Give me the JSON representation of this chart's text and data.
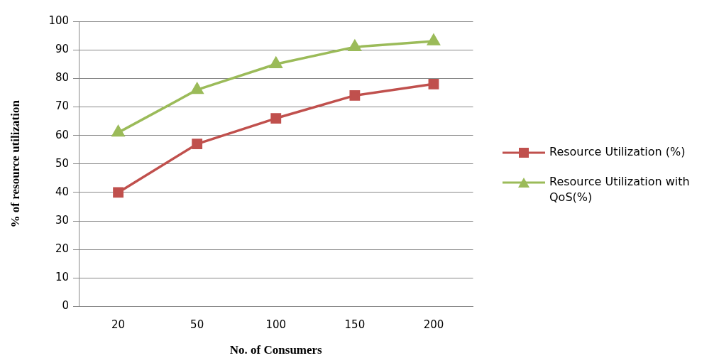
{
  "chart_data": {
    "type": "line",
    "xlabel": "No. of Consumers",
    "ylabel": "% of resource utilization",
    "categories": [
      "20",
      "50",
      "100",
      "150",
      "200"
    ],
    "series": [
      {
        "name": "Resource Utilization (%)",
        "color": "#c0504d",
        "marker": "square",
        "values": [
          40,
          57,
          66,
          74,
          78
        ]
      },
      {
        "name": "Resource Utilization with QoS(%)",
        "color": "#9bbb59",
        "marker": "triangle",
        "values": [
          61,
          76,
          85,
          91,
          93
        ]
      }
    ],
    "ylim": [
      0,
      100
    ],
    "yticks": [
      0,
      10,
      20,
      30,
      40,
      50,
      60,
      70,
      80,
      90,
      100
    ],
    "grid": "y",
    "legend": "right"
  }
}
